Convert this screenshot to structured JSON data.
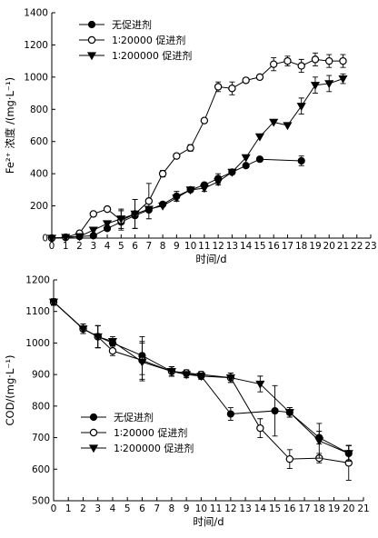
{
  "chart_data": [
    {
      "type": "line",
      "ylabel": "Fe²⁺ 浓度 /(mg·L⁻¹)",
      "xlabel": "时间/d",
      "xlim": [
        0,
        23
      ],
      "ylim": [
        0,
        1400
      ],
      "xticks": [
        0,
        1,
        2,
        3,
        4,
        5,
        6,
        7,
        8,
        9,
        10,
        11,
        12,
        13,
        14,
        15,
        16,
        17,
        18,
        19,
        20,
        21,
        22,
        23
      ],
      "yticks": [
        0,
        200,
        400,
        600,
        800,
        1000,
        1200,
        1400
      ],
      "legend_position": "top-left",
      "series": [
        {
          "name": "无促进剂",
          "marker": "filled-circle",
          "points": [
            [
              0,
              0
            ],
            [
              1,
              5
            ],
            [
              2,
              10
            ],
            [
              3,
              15
            ],
            [
              4,
              60
            ],
            [
              5,
              100
            ],
            [
              6,
              140
            ],
            [
              7,
              175
            ],
            [
              8,
              210
            ],
            [
              9,
              260
            ],
            [
              10,
              300
            ],
            [
              11,
              330
            ],
            [
              12,
              370
            ],
            [
              13,
              410
            ],
            [
              14,
              450
            ],
            [
              15,
              490
            ],
            [
              18,
              480
            ]
          ],
          "err": [
            0,
            0,
            0,
            0,
            0,
            0,
            0,
            0,
            0,
            30,
            0,
            0,
            30,
            0,
            0,
            0,
            30
          ]
        },
        {
          "name": "1∶20000 促进剂",
          "marker": "open-circle",
          "points": [
            [
              0,
              0
            ],
            [
              1,
              5
            ],
            [
              2,
              30
            ],
            [
              3,
              150
            ],
            [
              4,
              180
            ],
            [
              5,
              110
            ],
            [
              6,
              150
            ],
            [
              7,
              230
            ],
            [
              8,
              400
            ],
            [
              9,
              510
            ],
            [
              10,
              560
            ],
            [
              11,
              730
            ],
            [
              12,
              940
            ],
            [
              13,
              930
            ],
            [
              14,
              980
            ],
            [
              15,
              1000
            ],
            [
              16,
              1080
            ],
            [
              17,
              1100
            ],
            [
              18,
              1070
            ],
            [
              19,
              1110
            ],
            [
              20,
              1100
            ],
            [
              21,
              1100
            ]
          ],
          "err": [
            0,
            0,
            0,
            0,
            0,
            60,
            90,
            110,
            20,
            0,
            20,
            0,
            30,
            40,
            0,
            0,
            40,
            30,
            40,
            40,
            40,
            40
          ]
        },
        {
          "name": "1∶200000 促进剂",
          "marker": "filled-triangle-down",
          "points": [
            [
              0,
              0
            ],
            [
              1,
              5
            ],
            [
              2,
              10
            ],
            [
              3,
              50
            ],
            [
              4,
              90
            ],
            [
              5,
              120
            ],
            [
              6,
              150
            ],
            [
              7,
              180
            ],
            [
              8,
              200
            ],
            [
              9,
              250
            ],
            [
              10,
              300
            ],
            [
              11,
              310
            ],
            [
              12,
              350
            ],
            [
              13,
              410
            ],
            [
              14,
              500
            ],
            [
              15,
              630
            ],
            [
              16,
              720
            ],
            [
              17,
              700
            ],
            [
              18,
              820
            ],
            [
              19,
              950
            ],
            [
              20,
              960
            ],
            [
              21,
              990
            ]
          ],
          "err": [
            0,
            0,
            0,
            0,
            0,
            60,
            90,
            0,
            0,
            20,
            0,
            20,
            20,
            0,
            0,
            0,
            0,
            0,
            50,
            50,
            50,
            30
          ]
        }
      ]
    },
    {
      "type": "line",
      "ylabel": "COD/(mg·L⁻¹)",
      "xlabel": "时间/d",
      "xlim": [
        0,
        21
      ],
      "ylim": [
        500,
        1200
      ],
      "xticks": [
        0,
        1,
        2,
        3,
        4,
        5,
        6,
        7,
        8,
        9,
        10,
        11,
        12,
        13,
        14,
        15,
        16,
        17,
        18,
        19,
        20,
        21
      ],
      "yticks": [
        500,
        600,
        700,
        800,
        900,
        1000,
        1100,
        1200
      ],
      "legend_position": "bottom-left",
      "series": [
        {
          "name": "无促进剂",
          "marker": "filled-circle",
          "points": [
            [
              0,
              1130
            ],
            [
              2,
              1045
            ],
            [
              3,
              1020
            ],
            [
              4,
              1000
            ],
            [
              6,
              960
            ],
            [
              8,
              910
            ],
            [
              9,
              905
            ],
            [
              10,
              895
            ],
            [
              12,
              775
            ],
            [
              15,
              785
            ],
            [
              16,
              780
            ],
            [
              18,
              700
            ],
            [
              20,
              650
            ]
          ],
          "err": [
            10,
            15,
            35,
            10,
            60,
            15,
            10,
            10,
            20,
            80,
            15,
            20,
            25
          ]
        },
        {
          "name": "1∶20000 促进剂",
          "marker": "open-circle",
          "points": [
            [
              0,
              1130
            ],
            [
              2,
              1045
            ],
            [
              3,
              1020
            ],
            [
              4,
              975
            ],
            [
              6,
              945
            ],
            [
              8,
              910
            ],
            [
              9,
              905
            ],
            [
              10,
              900
            ],
            [
              12,
              890
            ],
            [
              14,
              730
            ],
            [
              16,
              632
            ],
            [
              18,
              635
            ],
            [
              20,
              620
            ]
          ],
          "err": [
            10,
            15,
            35,
            15,
            60,
            15,
            10,
            10,
            15,
            30,
            30,
            15,
            55
          ]
        },
        {
          "name": "1∶200000 促进剂",
          "marker": "filled-triangle-down",
          "points": [
            [
              0,
              1130
            ],
            [
              2,
              1045
            ],
            [
              3,
              1020
            ],
            [
              4,
              1005
            ],
            [
              6,
              940
            ],
            [
              8,
              910
            ],
            [
              9,
              900
            ],
            [
              10,
              895
            ],
            [
              12,
              890
            ],
            [
              14,
              870
            ],
            [
              16,
              780
            ],
            [
              18,
              690
            ],
            [
              20,
              650
            ]
          ],
          "err": [
            10,
            15,
            35,
            15,
            60,
            15,
            10,
            10,
            15,
            25,
            15,
            55,
            25
          ]
        }
      ]
    }
  ]
}
